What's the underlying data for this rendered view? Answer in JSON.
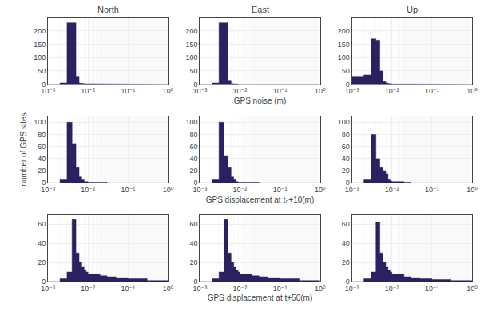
{
  "chart_data": [
    {
      "type": "histogram",
      "title": "North",
      "bins": [
        0.001,
        0.002,
        0.003,
        0.004,
        0.005,
        0.006,
        0.007,
        0.008,
        0.009,
        0.01,
        0.02,
        0.03,
        0.05,
        0.1,
        0.3,
        1.0
      ],
      "values": [
        0,
        5,
        230,
        230,
        30,
        5,
        3,
        2,
        1,
        1,
        1,
        0,
        0,
        0,
        0
      ],
      "color": "#2d2060",
      "log": "x",
      "xlim": [
        0.001,
        1.0
      ],
      "xticks": [
        {
          "value": 0.001,
          "label": "10⁻³"
        },
        {
          "value": 0.01,
          "label": "10⁻²"
        },
        {
          "value": 0.1,
          "label": "10⁻¹"
        },
        {
          "value": 1,
          "label": "10⁰"
        }
      ],
      "ylim": [
        0,
        250
      ],
      "yticks": [
        0,
        50,
        100,
        150,
        200
      ],
      "grid": true
    },
    {
      "type": "histogram",
      "title": "East",
      "xlabel": "GPS noise (m)",
      "bins": [
        0.001,
        0.002,
        0.003,
        0.004,
        0.005,
        0.006,
        0.007,
        0.008,
        0.009,
        0.01,
        0.02,
        0.03,
        0.05,
        0.1,
        0.3,
        1.0
      ],
      "values": [
        0,
        5,
        230,
        230,
        15,
        3,
        2,
        1,
        0,
        0,
        0,
        0,
        0,
        0,
        0
      ],
      "color": "#2d2060",
      "log": "x",
      "xlim": [
        0.001,
        1.0
      ],
      "xticks": [
        {
          "value": 0.001,
          "label": "10⁻³"
        },
        {
          "value": 0.01,
          "label": "10⁻²"
        },
        {
          "value": 0.1,
          "label": "10⁻¹"
        },
        {
          "value": 1,
          "label": "10⁰"
        }
      ],
      "ylim": [
        0,
        250
      ],
      "yticks": [
        0,
        50,
        100,
        150,
        200
      ],
      "grid": true
    },
    {
      "type": "histogram",
      "title": "Up",
      "bins": [
        0.001,
        0.002,
        0.003,
        0.004,
        0.005,
        0.006,
        0.007,
        0.008,
        0.009,
        0.01,
        0.02,
        0.03,
        0.05,
        0.1,
        0.3,
        1.0
      ],
      "values": [
        30,
        35,
        170,
        165,
        50,
        10,
        5,
        3,
        2,
        1,
        1,
        0,
        0,
        0,
        0
      ],
      "color": "#2d2060",
      "log": "x",
      "xlim": [
        0.001,
        1.0
      ],
      "xticks": [
        {
          "value": 0.001,
          "label": "10⁻³"
        },
        {
          "value": 0.01,
          "label": "10⁻²"
        },
        {
          "value": 0.1,
          "label": "10⁻¹"
        },
        {
          "value": 1,
          "label": "10⁰"
        }
      ],
      "ylim": [
        0,
        250
      ],
      "yticks": [
        0,
        50,
        100,
        150,
        200
      ],
      "grid": true
    },
    {
      "type": "histogram",
      "ylabel": "number of GPS sites",
      "bins": [
        0.001,
        0.002,
        0.003,
        0.004,
        0.005,
        0.006,
        0.007,
        0.008,
        0.009,
        0.01,
        0.02,
        0.03,
        0.05,
        0.1,
        0.3,
        1.0
      ],
      "values": [
        0,
        5,
        100,
        65,
        25,
        10,
        5,
        2,
        2,
        1,
        1,
        0,
        0,
        0,
        0
      ],
      "color": "#2d2060",
      "log": "x",
      "xlim": [
        0.001,
        1.0
      ],
      "xticks": [
        {
          "value": 0.001,
          "label": "10⁻³"
        },
        {
          "value": 0.01,
          "label": "10⁻²"
        },
        {
          "value": 0.1,
          "label": "10⁻¹"
        },
        {
          "value": 1,
          "label": "10⁰"
        }
      ],
      "ylim": [
        0,
        110
      ],
      "yticks": [
        0,
        20,
        40,
        60,
        80,
        100
      ],
      "grid": true
    },
    {
      "type": "histogram",
      "xlabel": "GPS displacement at t₀+10(m)",
      "bins": [
        0.001,
        0.002,
        0.003,
        0.004,
        0.005,
        0.006,
        0.007,
        0.008,
        0.009,
        0.01,
        0.02,
        0.03,
        0.05,
        0.1,
        0.3,
        1.0
      ],
      "values": [
        0,
        5,
        100,
        45,
        25,
        10,
        5,
        2,
        1,
        1,
        1,
        0,
        0,
        0,
        0
      ],
      "color": "#2d2060",
      "log": "x",
      "xlim": [
        0.001,
        1.0
      ],
      "xticks": [
        {
          "value": 0.001,
          "label": "10⁻³"
        },
        {
          "value": 0.01,
          "label": "10⁻²"
        },
        {
          "value": 0.1,
          "label": "10⁻¹"
        },
        {
          "value": 1,
          "label": "10⁰"
        }
      ],
      "ylim": [
        0,
        110
      ],
      "yticks": [
        0,
        20,
        40,
        60,
        80,
        100
      ],
      "grid": true
    },
    {
      "type": "histogram",
      "bins": [
        0.001,
        0.002,
        0.003,
        0.004,
        0.005,
        0.006,
        0.007,
        0.008,
        0.009,
        0.01,
        0.02,
        0.03,
        0.05,
        0.1,
        0.3,
        1.0
      ],
      "values": [
        0,
        5,
        80,
        40,
        25,
        20,
        15,
        5,
        3,
        2,
        1,
        0,
        0,
        0,
        0
      ],
      "color": "#2d2060",
      "log": "x",
      "xlim": [
        0.001,
        1.0
      ],
      "xticks": [
        {
          "value": 0.001,
          "label": "10⁻³"
        },
        {
          "value": 0.01,
          "label": "10⁻²"
        },
        {
          "value": 0.1,
          "label": "10⁻¹"
        },
        {
          "value": 1,
          "label": "10⁰"
        }
      ],
      "ylim": [
        0,
        110
      ],
      "yticks": [
        0,
        20,
        40,
        60,
        80,
        100
      ],
      "grid": true
    },
    {
      "type": "histogram",
      "bins": [
        0.001,
        0.002,
        0.003,
        0.004,
        0.005,
        0.006,
        0.007,
        0.008,
        0.009,
        0.01,
        0.02,
        0.03,
        0.05,
        0.1,
        0.3,
        1.0
      ],
      "values": [
        0,
        3,
        10,
        65,
        30,
        20,
        15,
        12,
        10,
        8,
        6,
        5,
        4,
        3,
        1
      ],
      "color": "#2d2060",
      "log": "x",
      "xlim": [
        0.001,
        1.0
      ],
      "xticks": [
        {
          "value": 0.001,
          "label": "10⁻³"
        },
        {
          "value": 0.01,
          "label": "10⁻²"
        },
        {
          "value": 0.1,
          "label": "10⁻¹"
        },
        {
          "value": 1,
          "label": "10⁰"
        }
      ],
      "ylim": [
        0,
        70
      ],
      "yticks": [
        0,
        20,
        40,
        60
      ],
      "grid": true
    },
    {
      "type": "histogram",
      "xlabel": "GPS displacement at t+50(m)",
      "bins": [
        0.001,
        0.002,
        0.003,
        0.004,
        0.005,
        0.006,
        0.007,
        0.008,
        0.009,
        0.01,
        0.02,
        0.03,
        0.05,
        0.1,
        0.3,
        1.0
      ],
      "values": [
        0,
        3,
        10,
        65,
        30,
        20,
        15,
        12,
        10,
        8,
        6,
        5,
        4,
        3,
        1
      ],
      "color": "#2d2060",
      "log": "x",
      "xlim": [
        0.001,
        1.0
      ],
      "xticks": [
        {
          "value": 0.001,
          "label": "10⁻³"
        },
        {
          "value": 0.01,
          "label": "10⁻²"
        },
        {
          "value": 0.1,
          "label": "10⁻¹"
        },
        {
          "value": 1,
          "label": "10⁰"
        }
      ],
      "ylim": [
        0,
        70
      ],
      "yticks": [
        0,
        20,
        40,
        60
      ],
      "grid": true
    },
    {
      "type": "histogram",
      "bins": [
        0.001,
        0.002,
        0.003,
        0.004,
        0.005,
        0.006,
        0.007,
        0.008,
        0.009,
        0.01,
        0.02,
        0.03,
        0.05,
        0.1,
        0.3,
        1.0
      ],
      "values": [
        0,
        3,
        10,
        62,
        30,
        20,
        15,
        12,
        10,
        8,
        5,
        4,
        3,
        2,
        1
      ],
      "color": "#2d2060",
      "log": "x",
      "xlim": [
        0.001,
        1.0
      ],
      "xticks": [
        {
          "value": 0.001,
          "label": "10⁻³"
        },
        {
          "value": 0.01,
          "label": "10⁻²"
        },
        {
          "value": 0.1,
          "label": "10⁻¹"
        },
        {
          "value": 1,
          "label": "10⁰"
        }
      ],
      "ylim": [
        0,
        70
      ],
      "yticks": [
        0,
        20,
        40,
        60
      ],
      "grid": true
    }
  ]
}
